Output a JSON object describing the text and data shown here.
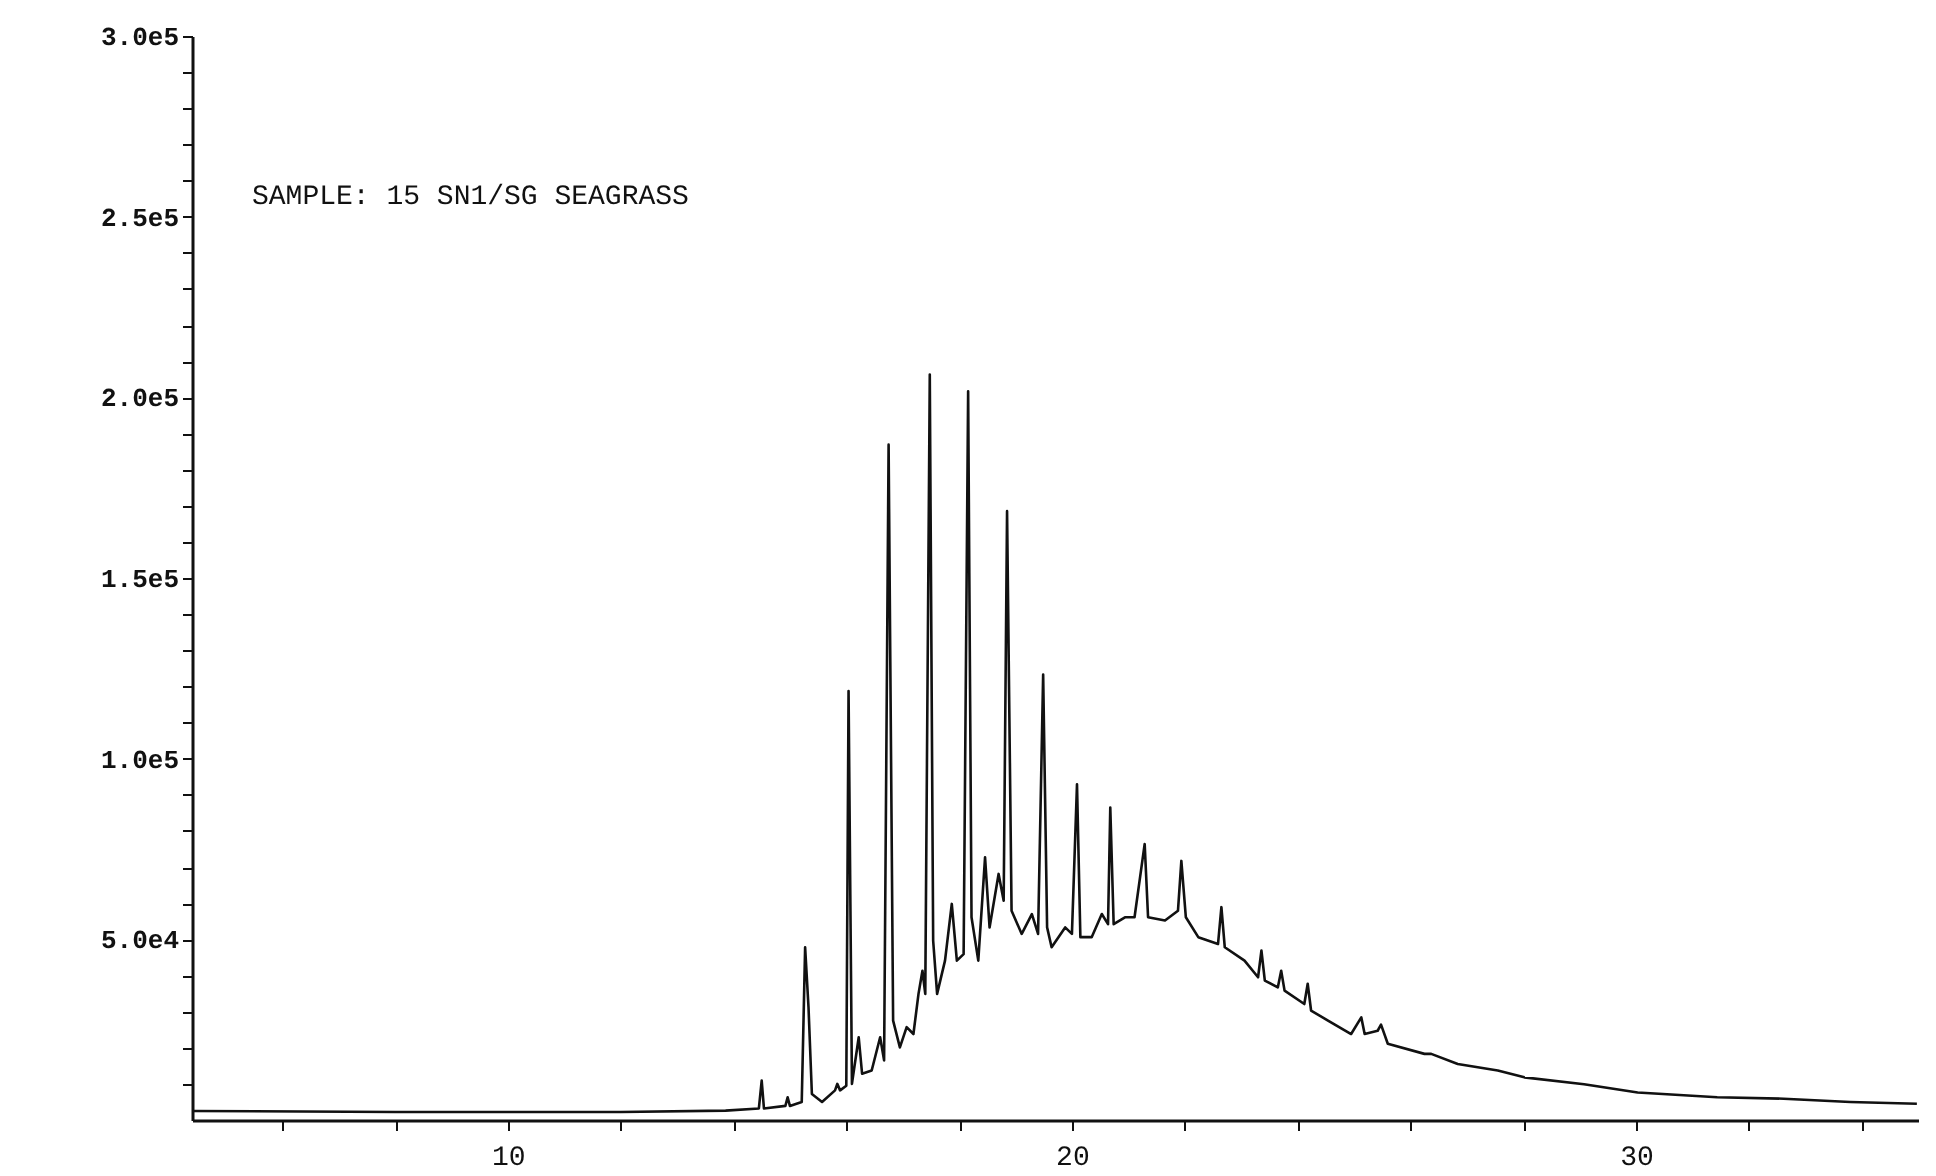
{
  "chart_data": {
    "type": "line",
    "annotations": [
      "SAMPLE: 15  SN1/SG SEAGRASS"
    ],
    "x": [
      4.4,
      8,
      12,
      13.86,
      14.45,
      14.5,
      14.54,
      14.92,
      14.96,
      15.0,
      15.21,
      15.27,
      15.33,
      15.39,
      15.57,
      15.8,
      15.84,
      15.89,
      16.0,
      16.04,
      16.1,
      16.22,
      16.28,
      16.45,
      16.6,
      16.67,
      16.75,
      16.83,
      16.95,
      17.07,
      17.19,
      17.28,
      17.35,
      17.4,
      17.48,
      17.54,
      17.61,
      17.75,
      17.87,
      17.96,
      18.08,
      18.16,
      18.22,
      18.34,
      18.46,
      18.54,
      18.7,
      18.79,
      18.85,
      18.93,
      19.11,
      19.29,
      19.4,
      19.49,
      19.56,
      19.64,
      19.88,
      20.0,
      20.09,
      20.15,
      20.35,
      20.53,
      20.64,
      20.68,
      20.74,
      20.94,
      21.11,
      21.29,
      21.35,
      21.65,
      21.88,
      21.94,
      22.02,
      22.24,
      22.59,
      22.65,
      22.71,
      23.06,
      23.3,
      23.36,
      23.42,
      23.65,
      23.71,
      23.77,
      24.12,
      24.18,
      24.24,
      24.54,
      24.95,
      25.13,
      25.19,
      25.42,
      25.48,
      25.6,
      26.25,
      26.37,
      26.84,
      27.55,
      28.02,
      29.08,
      30.03,
      31.44,
      32.62,
      33.8,
      34.98
    ],
    "series": [
      {
        "color": "#111111",
        "values": [
          2500,
          2200,
          2200,
          2600,
          3200,
          10900,
          3200,
          3900,
          6300,
          3900,
          5000,
          47800,
          31200,
          7200,
          5000,
          8200,
          10000,
          8200,
          9500,
          118700,
          10000,
          22900,
          12800,
          13700,
          22900,
          16500,
          186900,
          27500,
          20100,
          25700,
          23800,
          34900,
          41300,
          34900,
          206300,
          49600,
          34900,
          44100,
          59800,
          44100,
          45900,
          201700,
          56100,
          44100,
          72700,
          53300,
          68100,
          60700,
          168500,
          57900,
          51500,
          57000,
          51500,
          123300,
          53300,
          47800,
          53300,
          51500,
          92900,
          50600,
          50600,
          57000,
          54200,
          86500,
          54200,
          56100,
          56100,
          76400,
          56100,
          55200,
          57900,
          71700,
          56100,
          50600,
          48700,
          58900,
          47800,
          44100,
          39500,
          46900,
          38600,
          36700,
          41300,
          35800,
          32100,
          37700,
          30300,
          27500,
          23800,
          28400,
          23800,
          24700,
          26400,
          21100,
          18300,
          18300,
          15500,
          13700,
          11800,
          9900,
          7600,
          6300,
          5900,
          5000,
          4500
        ]
      }
    ],
    "xlim": [
      4.4,
      35
    ],
    "ylim": [
      0,
      300000
    ],
    "xticks": [
      {
        "value": 6,
        "label": null
      },
      {
        "value": 8,
        "label": null
      },
      10,
      {
        "value": 12,
        "label": null
      },
      {
        "value": 14,
        "label": null
      },
      {
        "value": 16,
        "label": null
      },
      {
        "value": 18,
        "label": null
      },
      20,
      {
        "value": 22,
        "label": null
      },
      {
        "value": 24,
        "label": null
      },
      {
        "value": 26,
        "label": null
      },
      {
        "value": 28,
        "label": null
      },
      30,
      {
        "value": 32,
        "label": null
      },
      {
        "value": 34,
        "label": null
      }
    ],
    "yticks": [
      {
        "value": 10000,
        "label": null
      },
      {
        "value": 20000,
        "label": null
      },
      {
        "value": 30000,
        "label": null
      },
      {
        "value": 40000,
        "label": null
      },
      {
        "value": 50000,
        "label": "5.0e4"
      },
      {
        "value": 60000,
        "label": null
      },
      {
        "value": 70000,
        "label": null
      },
      {
        "value": 80000,
        "label": null
      },
      {
        "value": 90000,
        "label": null
      },
      {
        "value": 100000,
        "label": "1.0e5"
      },
      {
        "value": 110000,
        "label": null
      },
      {
        "value": 120000,
        "label": null
      },
      {
        "value": 130000,
        "label": null
      },
      {
        "value": 140000,
        "label": null
      },
      {
        "value": 150000,
        "label": "1.5e5"
      },
      {
        "value": 160000,
        "label": null
      },
      {
        "value": 170000,
        "label": null
      },
      {
        "value": 180000,
        "label": null
      },
      {
        "value": 190000,
        "label": null
      },
      {
        "value": 200000,
        "label": "2.0e5"
      },
      {
        "value": 210000,
        "label": null
      },
      {
        "value": 220000,
        "label": null
      },
      {
        "value": 230000,
        "label": null
      },
      {
        "value": 240000,
        "label": null
      },
      {
        "value": 250000,
        "label": "2.5e5"
      },
      {
        "value": 260000,
        "label": null
      },
      {
        "value": 270000,
        "label": null
      },
      {
        "value": 280000,
        "label": null
      },
      {
        "value": 290000,
        "label": null
      },
      {
        "value": 300000,
        "label": "3.0e5"
      }
    ],
    "grid": false
  }
}
